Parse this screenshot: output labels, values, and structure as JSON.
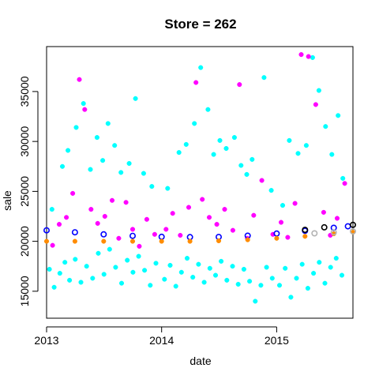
{
  "chart_data": {
    "type": "scatter",
    "title": "Store = 262",
    "xlabel": "date",
    "ylabel": "sale",
    "xlim": [
      "2013-01-01",
      "2015-08-31"
    ],
    "ylim": [
      12300,
      39500
    ],
    "x_ticks": [
      {
        "date": "2013-01-01",
        "label": "2013"
      },
      {
        "date": "2014-01-01",
        "label": "2014"
      },
      {
        "date": "2015-01-01",
        "label": "2015"
      }
    ],
    "y_ticks": [
      15000,
      20000,
      25000,
      30000,
      35000
    ],
    "grid": false,
    "legend": "none",
    "colors": {
      "cyan": "#00ffff",
      "magenta": "#ff00ff",
      "blue": "#0000ff",
      "black": "#000000",
      "orange": "#ff8c00",
      "gray": "#b3b3b3"
    },
    "series": [
      {
        "color": "cyan",
        "style": "filled-points",
        "points": [
          [
            "2013-01-10",
            17200
          ],
          [
            "2013-01-25",
            15400
          ],
          [
            "2013-02-12",
            16800
          ],
          [
            "2013-02-28",
            17900
          ],
          [
            "2013-03-15",
            16100
          ],
          [
            "2013-04-02",
            18200
          ],
          [
            "2013-04-20",
            15900
          ],
          [
            "2013-05-08",
            17500
          ],
          [
            "2013-05-27",
            16300
          ],
          [
            "2013-06-14",
            18800
          ],
          [
            "2013-07-02",
            16700
          ],
          [
            "2013-07-20",
            19200
          ],
          [
            "2013-08-08",
            17400
          ],
          [
            "2013-08-27",
            15800
          ],
          [
            "2013-09-14",
            18100
          ],
          [
            "2013-10-02",
            16900
          ],
          [
            "2013-10-20",
            18500
          ],
          [
            "2013-11-08",
            17100
          ],
          [
            "2013-11-26",
            15600
          ],
          [
            "2013-12-14",
            17800
          ],
          [
            "2014-01-10",
            16200
          ],
          [
            "2014-01-28",
            17600
          ],
          [
            "2014-02-15",
            15500
          ],
          [
            "2014-03-05",
            16900
          ],
          [
            "2014-03-23",
            18300
          ],
          [
            "2014-04-10",
            16400
          ],
          [
            "2014-04-28",
            17700
          ],
          [
            "2014-05-16",
            15900
          ],
          [
            "2014-06-03",
            17300
          ],
          [
            "2014-06-21",
            16600
          ],
          [
            "2014-07-09",
            18000
          ],
          [
            "2014-07-27",
            16100
          ],
          [
            "2014-08-14",
            17500
          ],
          [
            "2014-09-01",
            15700
          ],
          [
            "2014-09-19",
            17200
          ],
          [
            "2014-10-07",
            16000
          ],
          [
            "2014-10-25",
            14000
          ],
          [
            "2014-11-12",
            15600
          ],
          [
            "2014-11-30",
            17400
          ],
          [
            "2014-12-18",
            16300
          ],
          [
            "2015-01-10",
            15600
          ],
          [
            "2015-01-28",
            17300
          ],
          [
            "2015-02-15",
            14400
          ],
          [
            "2015-03-05",
            16300
          ],
          [
            "2015-03-23",
            17700
          ],
          [
            "2015-04-10",
            15300
          ],
          [
            "2015-04-28",
            16800
          ],
          [
            "2015-05-16",
            17900
          ],
          [
            "2015-06-03",
            15800
          ],
          [
            "2015-06-21",
            17400
          ],
          [
            "2015-07-09",
            18300
          ],
          [
            "2015-07-27",
            16600
          ],
          [
            "2013-01-18",
            23200
          ],
          [
            "2013-02-20",
            27500
          ],
          [
            "2013-03-10",
            29100
          ],
          [
            "2013-04-05",
            31400
          ],
          [
            "2013-04-28",
            33800
          ],
          [
            "2013-05-20",
            27200
          ],
          [
            "2013-06-10",
            30400
          ],
          [
            "2013-06-28",
            28100
          ],
          [
            "2013-07-15",
            31800
          ],
          [
            "2013-08-05",
            29600
          ],
          [
            "2013-08-25",
            26900
          ],
          [
            "2013-09-20",
            27800
          ],
          [
            "2013-10-10",
            34300
          ],
          [
            "2013-11-05",
            26800
          ],
          [
            "2013-12-01",
            25500
          ],
          [
            "2014-01-20",
            25300
          ],
          [
            "2014-02-25",
            28900
          ],
          [
            "2014-03-20",
            29700
          ],
          [
            "2014-04-15",
            31800
          ],
          [
            "2014-05-05",
            37400
          ],
          [
            "2014-05-28",
            33200
          ],
          [
            "2014-06-15",
            28700
          ],
          [
            "2014-07-05",
            30100
          ],
          [
            "2014-07-25",
            29300
          ],
          [
            "2014-08-20",
            30400
          ],
          [
            "2014-09-10",
            27600
          ],
          [
            "2014-09-28",
            26700
          ],
          [
            "2014-10-15",
            28200
          ],
          [
            "2014-11-22",
            36400
          ],
          [
            "2014-12-15",
            25100
          ],
          [
            "2015-01-20",
            23600
          ],
          [
            "2015-02-10",
            30100
          ],
          [
            "2015-03-10",
            28800
          ],
          [
            "2015-04-05",
            29600
          ],
          [
            "2015-04-25",
            38400
          ],
          [
            "2015-05-15",
            35100
          ],
          [
            "2015-06-05",
            31500
          ],
          [
            "2015-06-25",
            28700
          ],
          [
            "2015-07-15",
            32600
          ],
          [
            "2015-07-30",
            26300
          ]
        ]
      },
      {
        "color": "magenta",
        "style": "filled-points",
        "points": [
          [
            "2013-01-20",
            19600
          ],
          [
            "2013-02-10",
            21700
          ],
          [
            "2013-03-05",
            22400
          ],
          [
            "2013-03-25",
            24800
          ],
          [
            "2013-04-15",
            36200
          ],
          [
            "2013-05-02",
            33200
          ],
          [
            "2013-05-22",
            23200
          ],
          [
            "2013-06-12",
            21800
          ],
          [
            "2013-07-05",
            22500
          ],
          [
            "2013-07-28",
            24100
          ],
          [
            "2013-08-18",
            20300
          ],
          [
            "2013-09-10",
            23900
          ],
          [
            "2013-10-01",
            21200
          ],
          [
            "2013-10-22",
            19500
          ],
          [
            "2013-11-15",
            22200
          ],
          [
            "2013-12-10",
            20700
          ],
          [
            "2014-01-15",
            21200
          ],
          [
            "2014-02-05",
            22800
          ],
          [
            "2014-03-01",
            20600
          ],
          [
            "2014-03-28",
            23400
          ],
          [
            "2014-04-20",
            35900
          ],
          [
            "2014-05-10",
            24200
          ],
          [
            "2014-06-01",
            22400
          ],
          [
            "2014-06-25",
            21700
          ],
          [
            "2014-07-20",
            23200
          ],
          [
            "2014-08-15",
            21100
          ],
          [
            "2014-09-05",
            35700
          ],
          [
            "2014-09-30",
            20300
          ],
          [
            "2014-10-20",
            22600
          ],
          [
            "2014-11-15",
            26100
          ],
          [
            "2014-12-20",
            20700
          ],
          [
            "2015-01-15",
            21900
          ],
          [
            "2015-02-05",
            20400
          ],
          [
            "2015-02-28",
            23800
          ],
          [
            "2015-03-20",
            38700
          ],
          [
            "2015-04-12",
            38500
          ],
          [
            "2015-05-05",
            33700
          ],
          [
            "2015-05-30",
            22900
          ],
          [
            "2015-06-20",
            20600
          ],
          [
            "2015-07-12",
            22300
          ],
          [
            "2015-08-05",
            25800
          ]
        ]
      },
      {
        "color": "blue",
        "style": "open-circles",
        "points": [
          [
            "2013-01-01",
            21100
          ],
          [
            "2013-04-01",
            20900
          ],
          [
            "2013-07-01",
            20700
          ],
          [
            "2013-10-01",
            20550
          ],
          [
            "2014-01-01",
            20450
          ],
          [
            "2014-04-01",
            20420
          ],
          [
            "2014-07-01",
            20440
          ],
          [
            "2014-10-01",
            20560
          ],
          [
            "2015-01-01",
            20780
          ],
          [
            "2015-04-01",
            21050
          ],
          [
            "2015-07-01",
            21350
          ],
          [
            "2015-08-15",
            21500
          ]
        ]
      },
      {
        "color": "black",
        "style": "open-circles",
        "points": [
          [
            "2015-04-01",
            21150
          ],
          [
            "2015-06-01",
            21400
          ],
          [
            "2015-08-31",
            21650
          ]
        ]
      },
      {
        "color": "orange",
        "style": "filled-points",
        "points": [
          [
            "2013-01-01",
            20000
          ],
          [
            "2013-04-01",
            20000
          ],
          [
            "2013-07-01",
            20000
          ],
          [
            "2013-10-01",
            20000
          ],
          [
            "2014-01-01",
            20000
          ],
          [
            "2014-04-01",
            20000
          ],
          [
            "2014-07-01",
            20050
          ],
          [
            "2014-10-01",
            20150
          ],
          [
            "2015-01-01",
            20300
          ],
          [
            "2015-04-01",
            20500
          ],
          [
            "2015-07-01",
            20750
          ],
          [
            "2015-08-31",
            20900
          ]
        ]
      },
      {
        "color": "gray",
        "style": "open-circles",
        "points": [
          [
            "2015-05-01",
            20800
          ],
          [
            "2015-07-01",
            20900
          ],
          [
            "2015-08-31",
            21000
          ]
        ]
      }
    ]
  }
}
